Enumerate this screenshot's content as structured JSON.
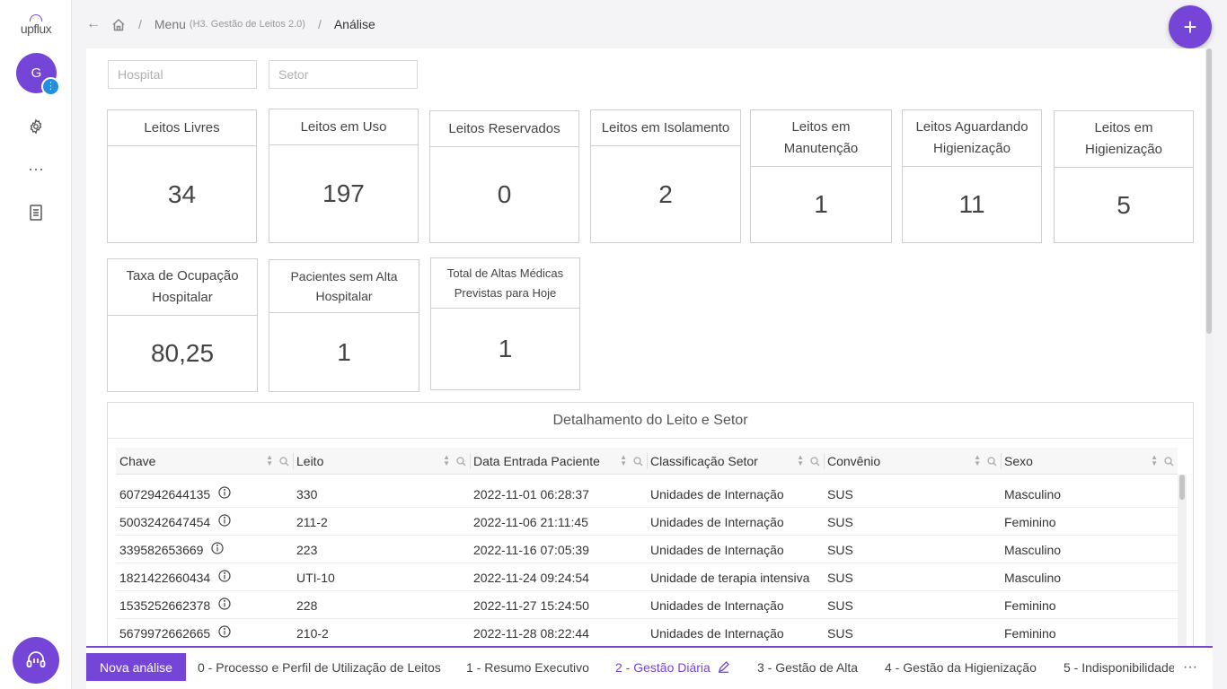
{
  "app": {
    "logo_text": "upflux"
  },
  "user": {
    "avatar_initial": "G",
    "badge_icon": "vertical-dots-icon"
  },
  "breadcrumb": {
    "menu": "Menu",
    "menu_sub": "(H3. Gestão de Leitos 2.0)",
    "current": "Análise"
  },
  "filters": {
    "hospital_placeholder": "Hospital",
    "setor_placeholder": "Setor"
  },
  "kpis": [
    {
      "label": "Leitos Livres",
      "value": "34"
    },
    {
      "label": "Leitos em Uso",
      "value": "197"
    },
    {
      "label": "Leitos Reservados",
      "value": "0"
    },
    {
      "label": "Leitos em Isolamento",
      "value": "2"
    },
    {
      "label": "Leitos em Manutenção",
      "value": "1"
    },
    {
      "label": "Leitos Aguardando Higienização",
      "value": "11"
    },
    {
      "label": "Leitos em Higienização",
      "value": "5"
    },
    {
      "label": "Taxa de Ocupação Hospitalar",
      "value": "80,25"
    },
    {
      "label": "Pacientes sem Alta Hospitalar",
      "value": "1"
    },
    {
      "label": "Total de Altas Médicas Previstas para Hoje",
      "value": "1"
    }
  ],
  "table": {
    "title": "Detalhamento do Leito e Setor",
    "columns": [
      "Chave",
      "Leito",
      "Data Entrada Paciente",
      "Classificação Setor",
      "Convênio",
      "Sexo"
    ],
    "rows": [
      {
        "chave": "6072942644135",
        "leito": "330",
        "data": "2022-11-01 06:28:37",
        "classificacao": "Unidades de Internação",
        "convenio": "SUS",
        "sexo": "Masculino"
      },
      {
        "chave": "5003242647454",
        "leito": "211-2",
        "data": "2022-11-06 21:11:45",
        "classificacao": "Unidades de Internação",
        "convenio": "SUS",
        "sexo": "Feminino"
      },
      {
        "chave": "339582653669",
        "leito": "223",
        "data": "2022-11-16 07:05:39",
        "classificacao": "Unidades de Internação",
        "convenio": "SUS",
        "sexo": "Masculino"
      },
      {
        "chave": "1821422660434",
        "leito": "UTI-10",
        "data": "2022-11-24 09:24:54",
        "classificacao": "Unidade de terapia intensiva",
        "convenio": "SUS",
        "sexo": "Masculino"
      },
      {
        "chave": "1535252662378",
        "leito": "228",
        "data": "2022-11-27 15:24:50",
        "classificacao": "Unidades de Internação",
        "convenio": "SUS",
        "sexo": "Feminino"
      },
      {
        "chave": "5679972662665",
        "leito": "210-2",
        "data": "2022-11-28 08:22:44",
        "classificacao": "Unidades de Internação",
        "convenio": "SUS",
        "sexo": "Feminino"
      }
    ]
  },
  "bottom_tabs": {
    "new_button": "Nova análise",
    "tabs": [
      "0 - Processo e Perfil de Utilização de Leitos",
      "1 - Resumo Executivo",
      "2 - Gestão Diária",
      "3 - Gestão de Alta",
      "4 - Gestão da Higienização",
      "5 - Indisponibilidade"
    ],
    "active_index": 2,
    "more": "···"
  },
  "colors": {
    "accent": "#7545d8",
    "badge": "#1e8fe1"
  }
}
